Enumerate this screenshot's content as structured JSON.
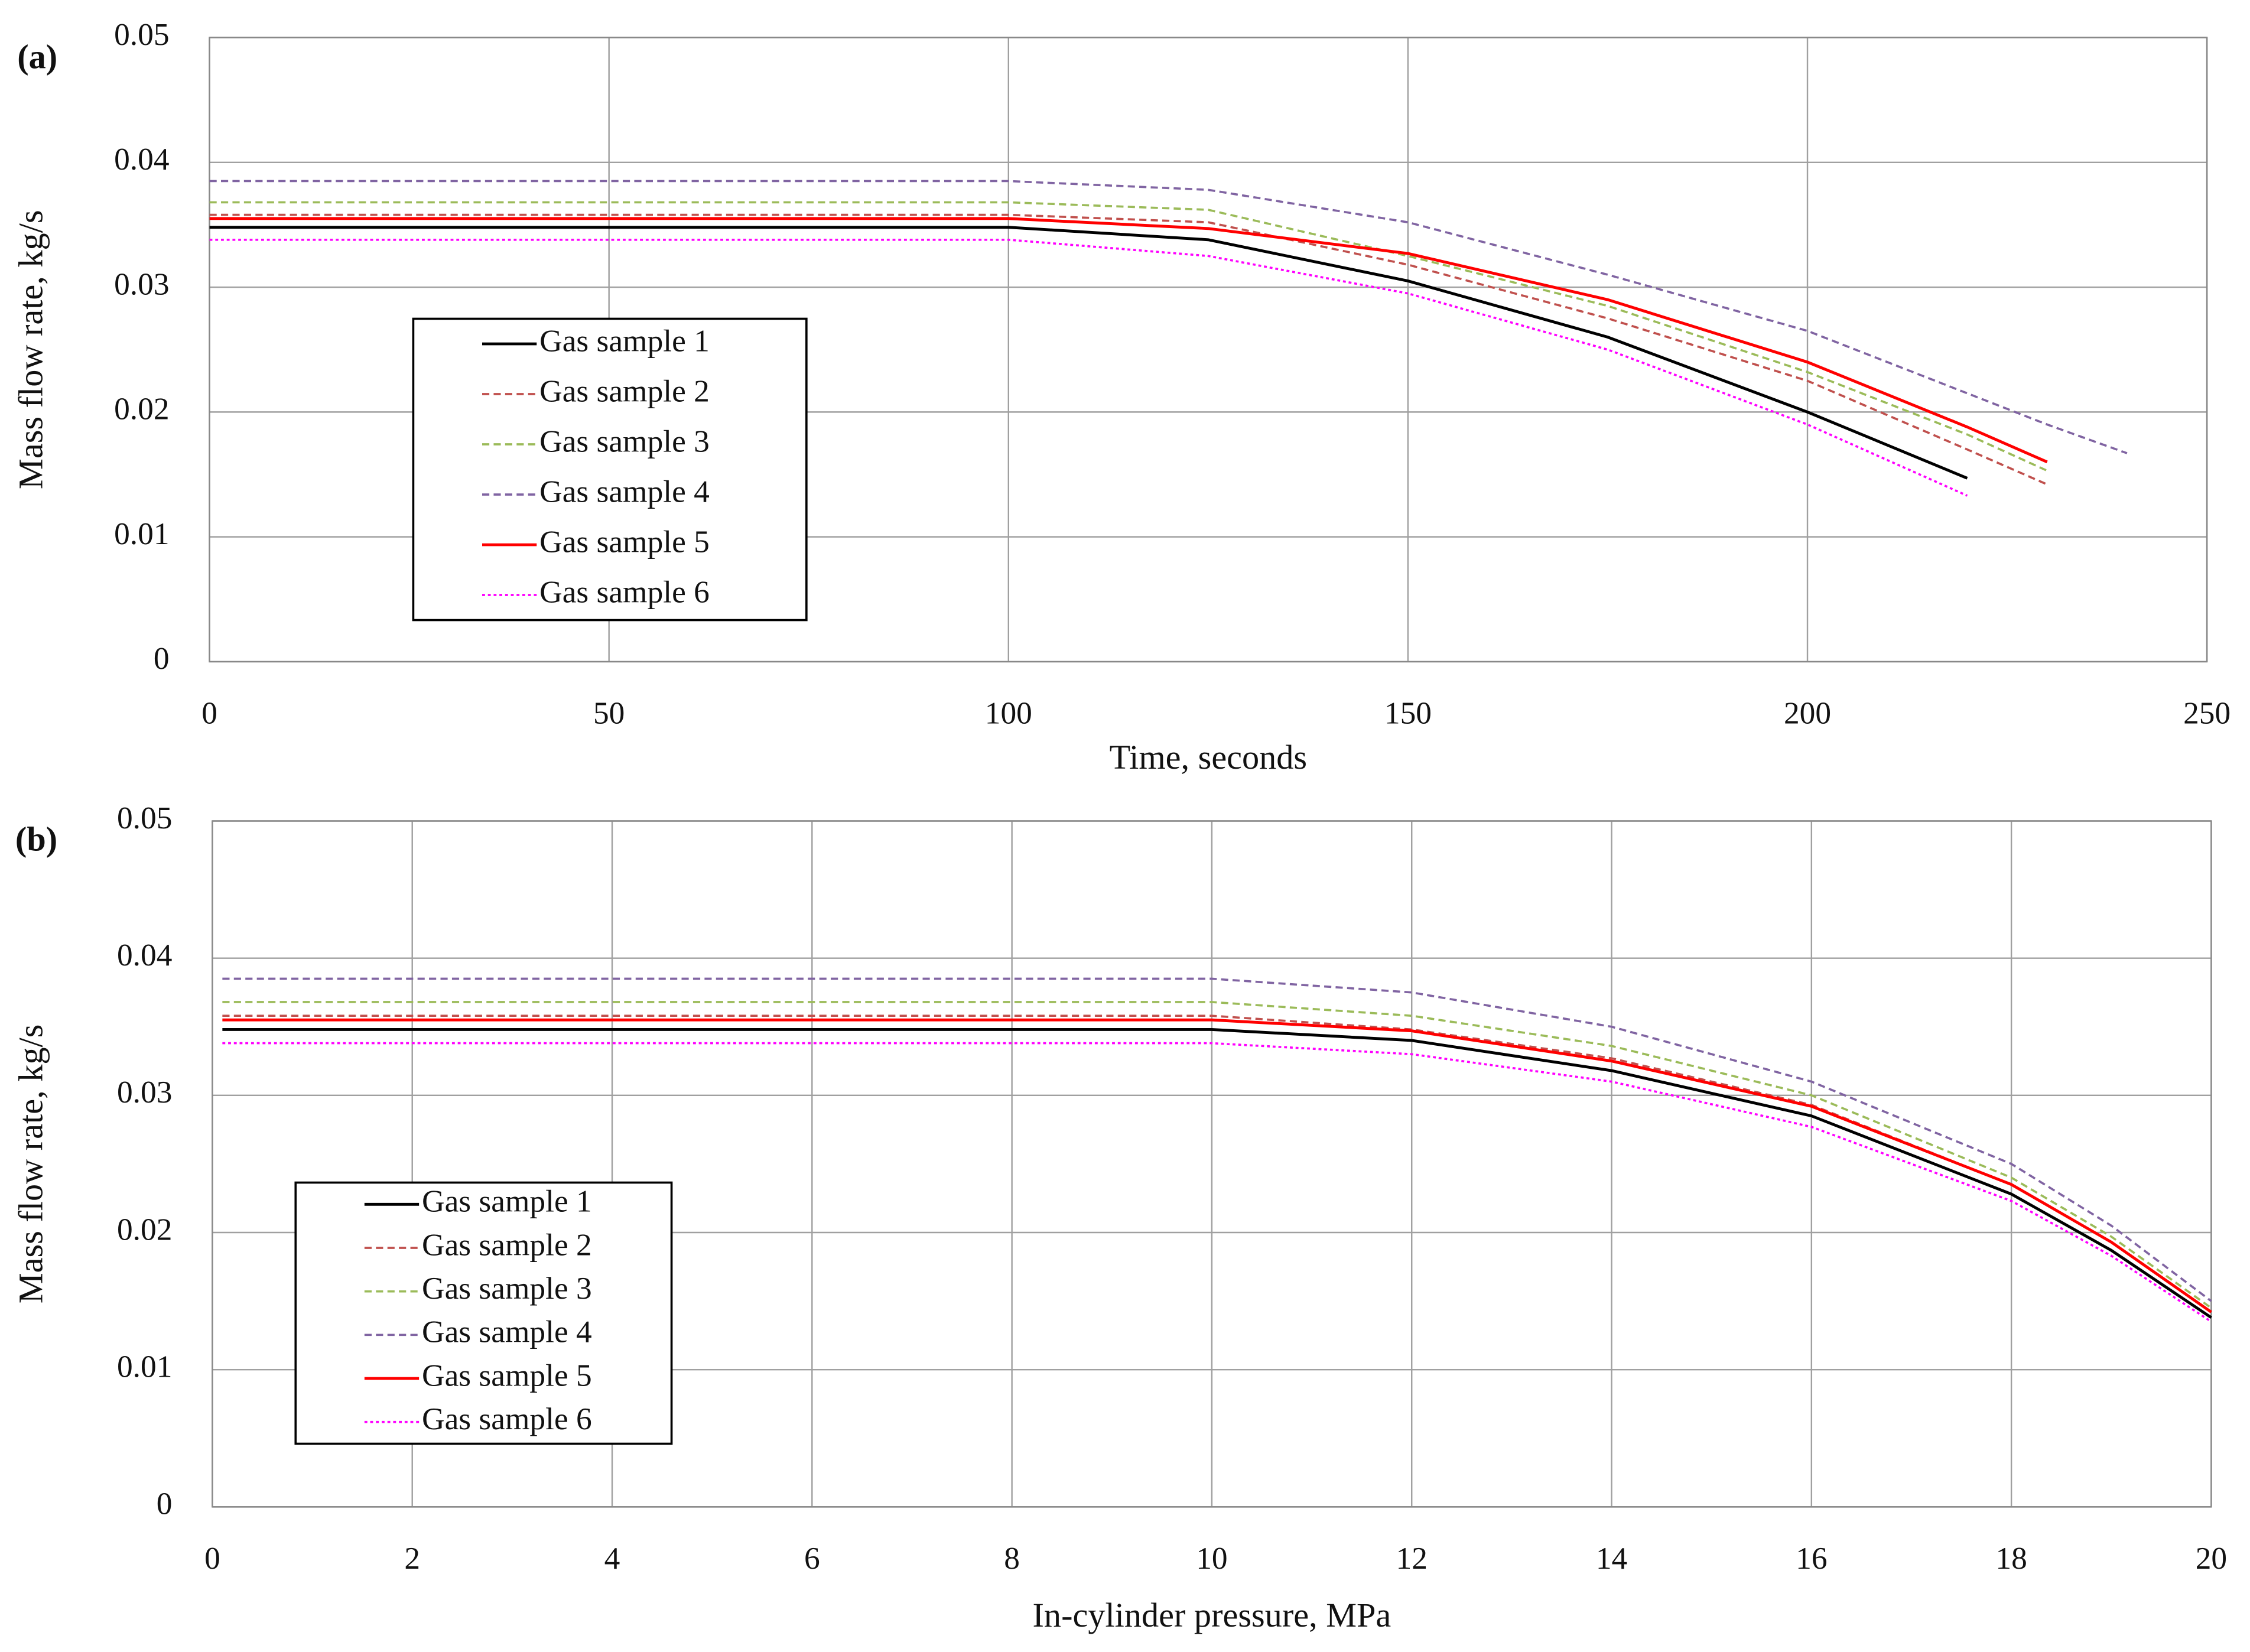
{
  "chart_data": [
    {
      "type": "line",
      "label": "(a)",
      "x_label": "Time, seconds",
      "y_label": "Mass flow rate, kg/s",
      "x": [
        0,
        25,
        50,
        75,
        100,
        125,
        150,
        175,
        200,
        220,
        230,
        240
      ],
      "xlim": [
        0,
        250
      ],
      "xticks": [
        0,
        50,
        100,
        150,
        200,
        250
      ],
      "ylim": [
        0,
        0.05
      ],
      "yticks": [
        0,
        0.01,
        0.02,
        0.03,
        0.04,
        0.05
      ],
      "grid": true,
      "legend": "left",
      "series": [
        {
          "name": "Gas sample 1",
          "color": "#000000",
          "style": "solid",
          "values": [
            0.0348,
            0.0348,
            0.0348,
            0.0348,
            0.0348,
            0.0338,
            0.0305,
            0.026,
            0.02,
            0.0147,
            null,
            null
          ]
        },
        {
          "name": "Gas sample 2",
          "color": "#c0504d",
          "style": "dashed",
          "values": [
            0.0358,
            0.0358,
            0.0358,
            0.0358,
            0.0358,
            0.0352,
            0.0318,
            0.0275,
            0.0225,
            0.017,
            0.0142,
            null
          ]
        },
        {
          "name": "Gas sample 3",
          "color": "#9bbb59",
          "style": "dashed",
          "values": [
            0.0368,
            0.0368,
            0.0368,
            0.0368,
            0.0368,
            0.0362,
            0.0325,
            0.0285,
            0.0232,
            0.0182,
            0.0153,
            null
          ]
        },
        {
          "name": "Gas sample 4",
          "color": "#8064a2",
          "style": "dashed",
          "values": [
            0.0385,
            0.0385,
            0.0385,
            0.0385,
            0.0385,
            0.0378,
            0.0352,
            0.031,
            0.0265,
            0.0215,
            0.019,
            0.0167
          ]
        },
        {
          "name": "Gas sample 5",
          "color": "#ff0000",
          "style": "solid",
          "values": [
            0.0355,
            0.0355,
            0.0355,
            0.0355,
            0.0355,
            0.0347,
            0.0327,
            0.029,
            0.024,
            0.0188,
            0.016,
            null
          ]
        },
        {
          "name": "Gas sample 6",
          "color": "#ff00ff",
          "style": "dotted",
          "values": [
            0.0338,
            0.0338,
            0.0338,
            0.0338,
            0.0338,
            0.0325,
            0.0295,
            0.025,
            0.019,
            0.0133,
            null,
            null
          ]
        }
      ]
    },
    {
      "type": "line",
      "label": "(b)",
      "x_label": "In-cylinder pressure, MPa",
      "y_label": "Mass flow rate, kg/s",
      "x": [
        0.1,
        2,
        4,
        6,
        8,
        10,
        12,
        14,
        16,
        18,
        19,
        20
      ],
      "xlim": [
        0,
        20
      ],
      "xticks": [
        0,
        2,
        4,
        6,
        8,
        10,
        12,
        14,
        16,
        18,
        20
      ],
      "ylim": [
        0,
        0.05
      ],
      "yticks": [
        0,
        0.01,
        0.02,
        0.03,
        0.04,
        0.05
      ],
      "grid": true,
      "legend": "left",
      "series": [
        {
          "name": "Gas sample 1",
          "color": "#000000",
          "style": "solid",
          "values": [
            0.0348,
            0.0348,
            0.0348,
            0.0348,
            0.0348,
            0.0348,
            0.034,
            0.0318,
            0.0285,
            0.0228,
            0.0187,
            0.0138
          ]
        },
        {
          "name": "Gas sample 2",
          "color": "#c0504d",
          "style": "dashed",
          "values": [
            0.0358,
            0.0358,
            0.0358,
            0.0358,
            0.0358,
            0.0358,
            0.0348,
            0.0327,
            0.0293,
            0.0235,
            0.0193,
            0.0142
          ]
        },
        {
          "name": "Gas sample 3",
          "color": "#9bbb59",
          "style": "dashed",
          "values": [
            0.0368,
            0.0368,
            0.0368,
            0.0368,
            0.0368,
            0.0368,
            0.0358,
            0.0336,
            0.03,
            0.024,
            0.0197,
            0.0145
          ]
        },
        {
          "name": "Gas sample 4",
          "color": "#8064a2",
          "style": "dashed",
          "values": [
            0.0385,
            0.0385,
            0.0385,
            0.0385,
            0.0385,
            0.0385,
            0.0375,
            0.035,
            0.031,
            0.025,
            0.0205,
            0.015
          ]
        },
        {
          "name": "Gas sample 5",
          "color": "#ff0000",
          "style": "solid",
          "values": [
            0.0355,
            0.0355,
            0.0355,
            0.0355,
            0.0355,
            0.0355,
            0.0347,
            0.0325,
            0.0292,
            0.0235,
            0.0193,
            0.0142
          ]
        },
        {
          "name": "Gas sample 6",
          "color": "#ff00ff",
          "style": "dotted",
          "values": [
            0.0338,
            0.0338,
            0.0338,
            0.0338,
            0.0338,
            0.0338,
            0.033,
            0.031,
            0.0277,
            0.0223,
            0.0183,
            0.0135
          ]
        }
      ]
    }
  ]
}
